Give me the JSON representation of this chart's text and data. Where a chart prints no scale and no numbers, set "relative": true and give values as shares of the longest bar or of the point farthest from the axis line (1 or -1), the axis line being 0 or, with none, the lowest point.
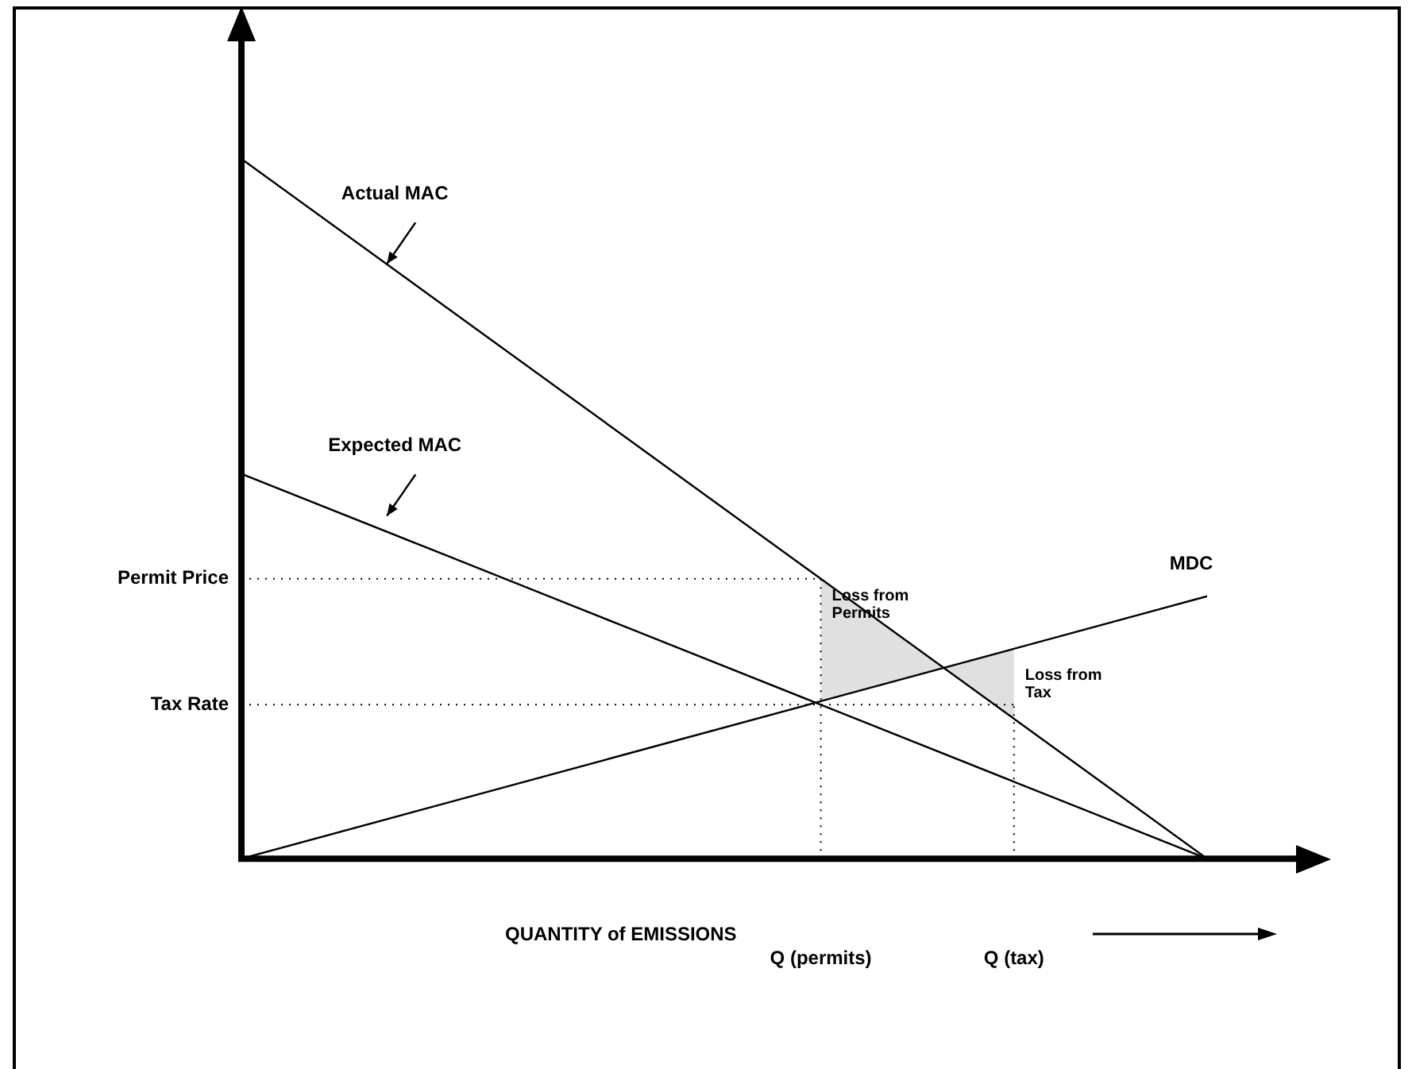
{
  "chart_data": {
    "type": "line",
    "relative": true,
    "xlabel": "QUANTITY of EMISSIONS",
    "categories": [
      null,
      null,
      null,
      "Q (permits)",
      "Q (tax)",
      null
    ],
    "series": [
      {
        "name": "Actual MAC",
        "color": "#000000",
        "values": [
          1,
          0.8,
          0.6,
          0.4,
          0.2,
          0
        ],
        "lower": [
          null,
          null,
          null,
          0.225,
          0.3,
          null
        ],
        "upper": [
          null,
          null,
          null,
          0.4,
          0.2,
          null
        ]
      },
      {
        "name": "Expected MAC",
        "color": "#000000",
        "values": [
          0.55,
          0.44,
          0.33,
          0.22,
          0.11,
          0
        ]
      },
      {
        "name": "MDC",
        "color": "#000000",
        "values": [
          0,
          0.075,
          0.15,
          0.225,
          0.3,
          0.375
        ]
      }
    ],
    "ref_lines": [
      {
        "axis": "y",
        "value": 0.4,
        "label": "Permit Price",
        "line_style": "dotted"
      },
      {
        "axis": "y",
        "value": 0.22,
        "label": "Tax Rate",
        "line_style": "dotted"
      },
      {
        "axis": "x",
        "value": "Q (permits)",
        "line_style": "dotted"
      },
      {
        "axis": "x",
        "value": "Q (tax)",
        "line_style": "dotted"
      }
    ],
    "annotations": [
      "Loss from\nPermits",
      "Loss from\nTax"
    ],
    "grid": false,
    "legend": false,
    "tick_labels": "x",
    "marker": "none",
    "line_style": "solid"
  }
}
